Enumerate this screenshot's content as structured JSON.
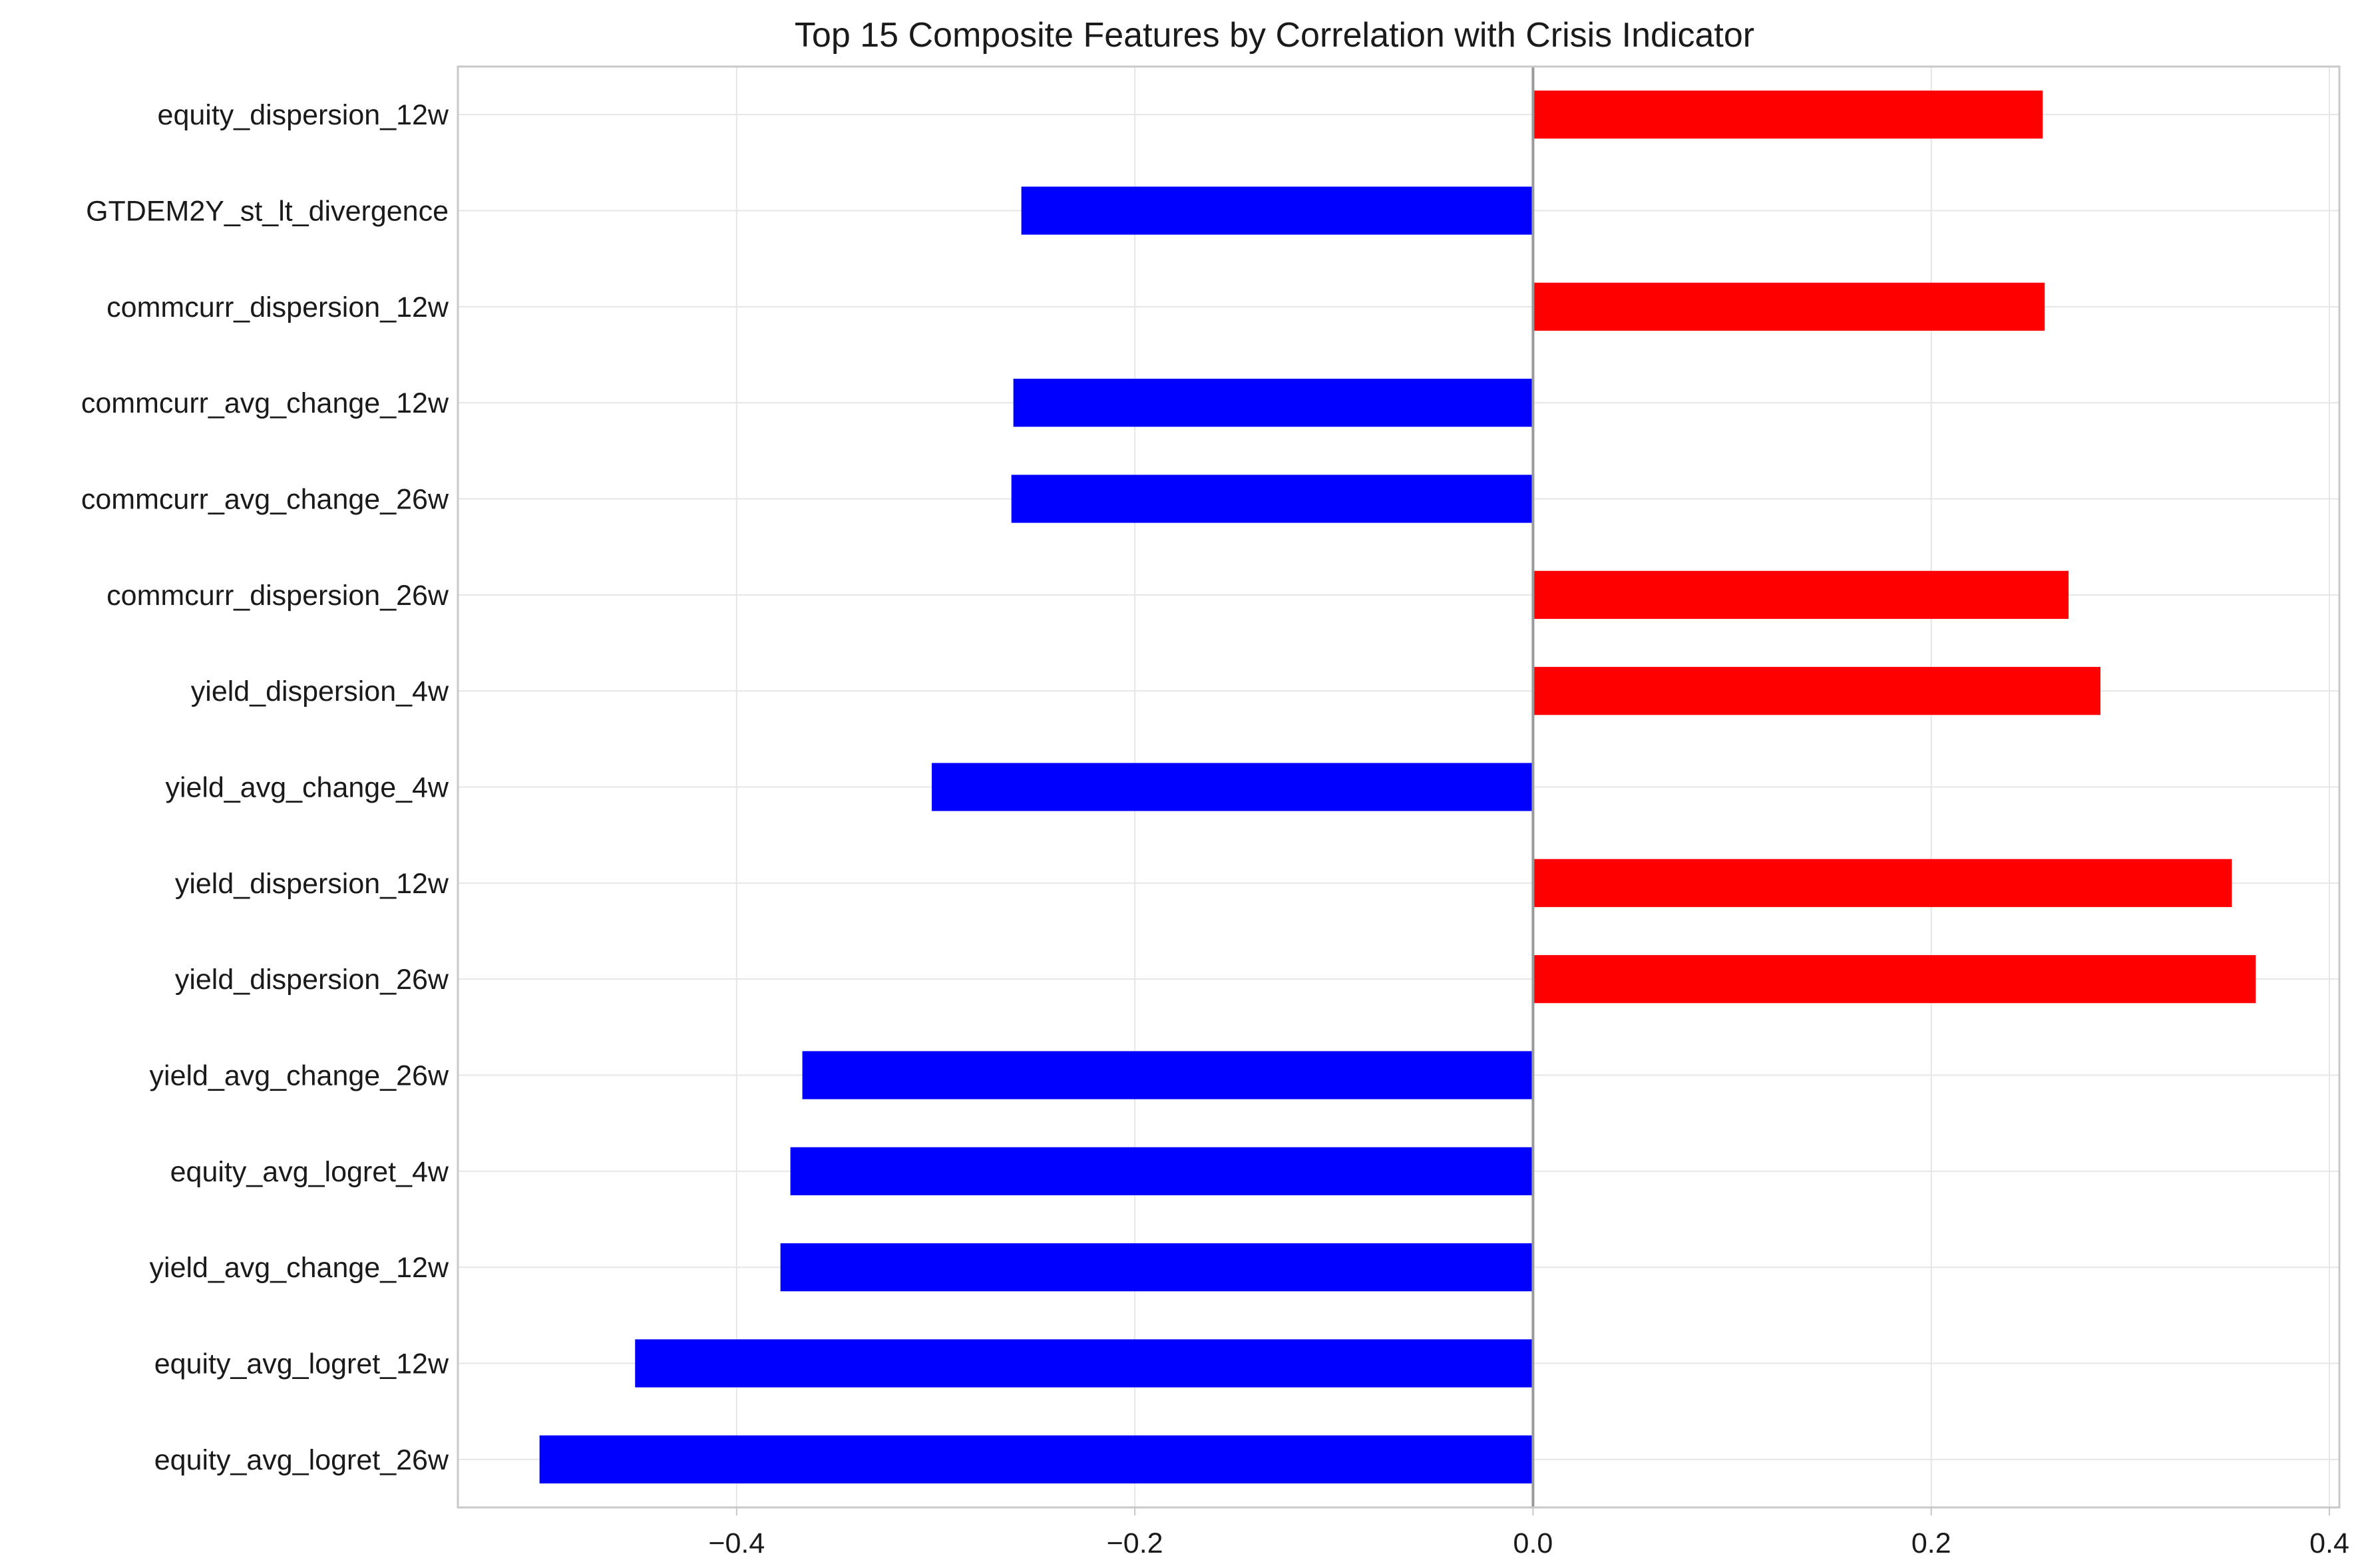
{
  "chart_data": {
    "type": "bar",
    "orientation": "horizontal",
    "title": "Top 15 Composite Features by Correlation with Crisis Indicator",
    "xlabel": "",
    "ylabel": "",
    "xlim": [
      -0.54,
      0.405
    ],
    "xticks": [
      -0.4,
      -0.2,
      0.0,
      0.2,
      0.4
    ],
    "xtick_labels": [
      "−0.4",
      "−0.2",
      "0.0",
      "0.2",
      "0.4"
    ],
    "grid": true,
    "legend": "none",
    "colors": {
      "positive": "#ff0000",
      "negative": "#0000ff",
      "zero_line": "#999999"
    },
    "categories": [
      "equity_dispersion_12w",
      "GTDEM2Y_st_lt_divergence",
      "commcurr_dispersion_12w",
      "commcurr_avg_change_12w",
      "commcurr_avg_change_26w",
      "commcurr_dispersion_26w",
      "yield_dispersion_4w",
      "yield_avg_change_4w",
      "yield_dispersion_12w",
      "yield_dispersion_26w",
      "yield_avg_change_26w",
      "equity_avg_logret_4w",
      "yield_avg_change_12w",
      "equity_avg_logret_12w",
      "equity_avg_logret_26w"
    ],
    "values": [
      0.256,
      -0.257,
      0.257,
      -0.261,
      -0.262,
      0.269,
      0.285,
      -0.302,
      0.351,
      0.363,
      -0.367,
      -0.373,
      -0.378,
      -0.451,
      -0.499
    ]
  }
}
